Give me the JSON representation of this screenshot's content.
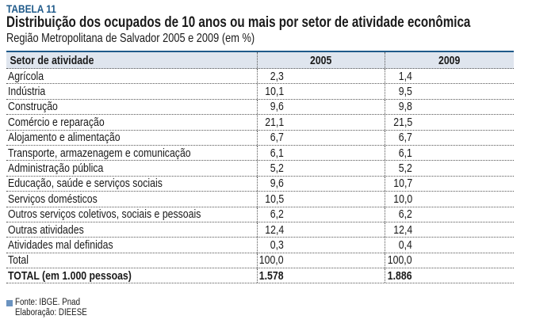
{
  "tabela_label": "TABELA 11",
  "title": "Distribuição dos ocupados de 10 anos ou mais por setor de atividade econômica",
  "subtitle": "Região Metropolitana de Salvador 2005 e 2009 (em %)",
  "colors": {
    "accent": "#1f5a8a",
    "header_bg": "#dfe5ee",
    "source_marker": "#6b93c0"
  },
  "table": {
    "headers": [
      "Setor de atividade",
      "2005",
      "2009"
    ],
    "rows": [
      {
        "label": "Agrícola",
        "v2005": "2,3",
        "v2009": "1,4"
      },
      {
        "label": "Indústria",
        "v2005": "10,1",
        "v2009": "9,5"
      },
      {
        "label": "Construção",
        "v2005": "9,6",
        "v2009": "9,8"
      },
      {
        "label": "Comércio e reparação",
        "v2005": "21,1",
        "v2009": "21,5"
      },
      {
        "label": "Alojamento e alimentação",
        "v2005": "6,7",
        "v2009": "6,7"
      },
      {
        "label": "Transporte, armazenagem e comunicação",
        "v2005": "6,1",
        "v2009": "6,1"
      },
      {
        "label": "Administração pública",
        "v2005": "5,2",
        "v2009": "5,2"
      },
      {
        "label": "Educação, saúde e serviços sociais",
        "v2005": "9,6",
        "v2009": "10,7"
      },
      {
        "label": "Serviços domésticos",
        "v2005": "10,5",
        "v2009": "10,0"
      },
      {
        "label": "Outros serviços coletivos, sociais e pessoais",
        "v2005": "6,2",
        "v2009": "6,2"
      },
      {
        "label": "Outras atividades",
        "v2005": "12,4",
        "v2009": "12,4"
      },
      {
        "label": "Atividades mal definidas",
        "v2005": "0,3",
        "v2009": "0,4"
      },
      {
        "label": "Total",
        "v2005": "100,0",
        "v2009": "100,0"
      },
      {
        "label": "TOTAL (em 1.000 pessoas)",
        "v2005": "1.578",
        "v2009": "1.886",
        "bold": true
      }
    ]
  },
  "footer": {
    "source": "Fonte: IBGE. Pnad",
    "elaboration": "Elaboração: DIEESE"
  }
}
